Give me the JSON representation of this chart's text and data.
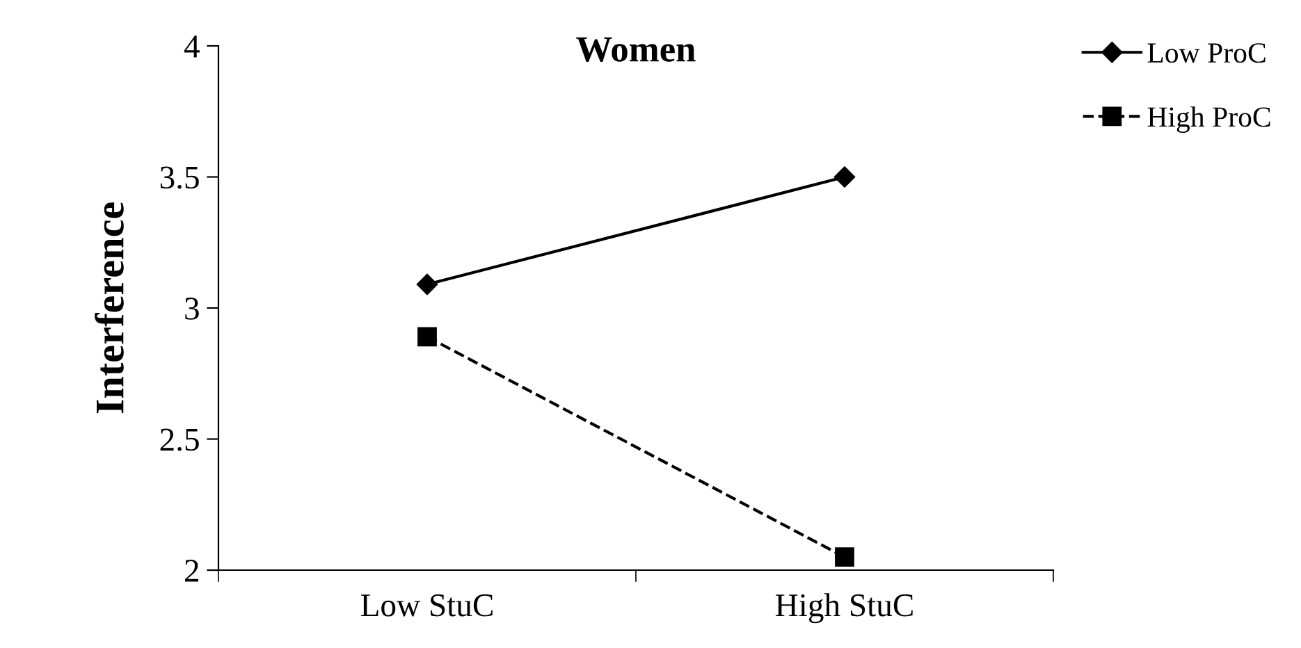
{
  "chart_data": {
    "type": "line",
    "title": "Women",
    "ylabel": "Interference",
    "categories": [
      "Low StuC",
      "High StuC"
    ],
    "series": [
      {
        "name": "Low ProC",
        "color": "#000000",
        "values": [
          3.09,
          3.5
        ],
        "marker": "diamond",
        "line_style": "solid"
      },
      {
        "name": "High ProC",
        "color": "#000000",
        "values": [
          2.89,
          2.05
        ],
        "marker": "square",
        "line_style": "dashed"
      }
    ],
    "ylim": [
      2,
      4
    ],
    "yticks": [
      2,
      2.5,
      3,
      3.5,
      4
    ],
    "grid": false,
    "legend": "top right"
  }
}
